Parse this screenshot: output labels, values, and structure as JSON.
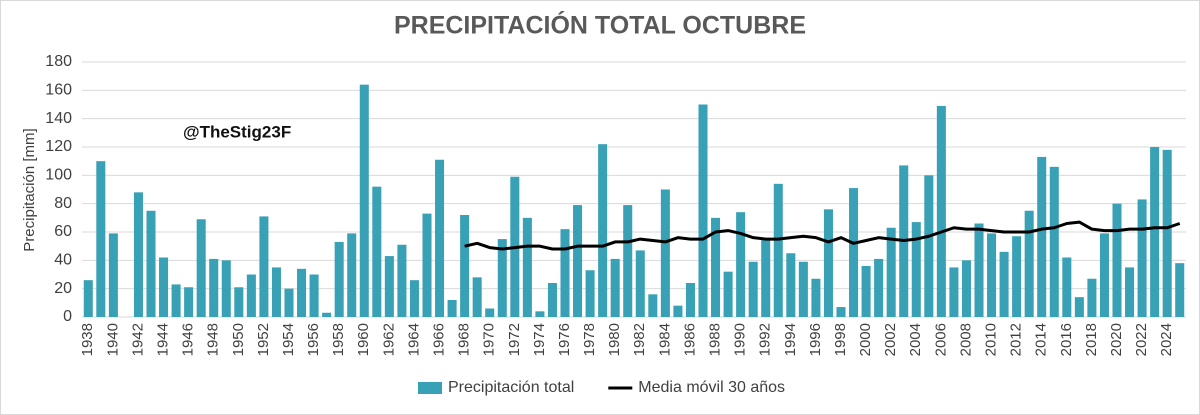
{
  "chart_data": {
    "type": "bar",
    "title": "PRECIPITACIÓN TOTAL OCTUBRE",
    "y_label": "Precipitación [mm]",
    "annotation": "@TheStig23F",
    "categories": [
      "1938",
      null,
      "1940",
      null,
      "1942",
      null,
      "1944",
      null,
      "1946",
      null,
      "1948",
      null,
      "1950",
      null,
      "1952",
      null,
      "1954",
      null,
      "1956",
      null,
      "1958",
      null,
      "1960",
      null,
      "1962",
      null,
      "1964",
      null,
      "1966",
      null,
      "1968",
      null,
      "1970",
      null,
      "1972",
      null,
      "1974",
      null,
      "1976",
      null,
      "1978",
      null,
      "1980",
      null,
      "1982",
      null,
      "1984",
      null,
      "1986",
      null,
      "1988",
      null,
      "1990",
      null,
      "1992",
      null,
      "1994",
      null,
      "1996",
      null,
      "1998",
      null,
      "2000",
      null,
      "2002",
      null,
      "2004",
      null,
      "2006",
      null,
      "2008",
      null,
      "2010",
      null,
      "2012",
      null,
      "2014",
      null,
      "2016",
      null,
      "2018",
      null,
      "2020",
      null,
      "2022",
      null,
      "2024",
      null
    ],
    "series": [
      {
        "name": "Precipitación total",
        "type": "bar",
        "color": "#38a1b5",
        "values": [
          26,
          110,
          59,
          0,
          88,
          75,
          42,
          23,
          21,
          69,
          41,
          40,
          21,
          30,
          71,
          35,
          20,
          34,
          30,
          3,
          53,
          59,
          164,
          92,
          43,
          51,
          26,
          73,
          111,
          12,
          72,
          28,
          6,
          55,
          99,
          70,
          4,
          24,
          62,
          79,
          33,
          122,
          41,
          79,
          47,
          16,
          90,
          8,
          24,
          150,
          70,
          32,
          74,
          39,
          55,
          94,
          45,
          39,
          27,
          76,
          7,
          91,
          36,
          41,
          63,
          107,
          67,
          100,
          149,
          35,
          40,
          66,
          59,
          46,
          57,
          75,
          113,
          106,
          42,
          14,
          27,
          59,
          80,
          35,
          83,
          120,
          118,
          38
        ]
      },
      {
        "name": "Media móvil 30 años",
        "type": "line",
        "color": "#000000",
        "values": [
          null,
          null,
          null,
          null,
          null,
          null,
          null,
          null,
          null,
          null,
          null,
          null,
          null,
          null,
          null,
          null,
          null,
          null,
          null,
          null,
          null,
          null,
          null,
          null,
          null,
          null,
          null,
          null,
          null,
          null,
          50,
          52,
          49,
          48,
          49,
          50,
          50,
          48,
          48,
          50,
          50,
          50,
          53,
          53,
          55,
          54,
          53,
          56,
          55,
          55,
          60,
          61,
          59,
          56,
          55,
          55,
          56,
          57,
          56,
          53,
          56,
          52,
          54,
          56,
          55,
          54,
          55,
          57,
          60,
          63,
          62,
          62,
          61,
          60,
          60,
          60,
          62,
          63,
          66,
          67,
          62,
          61,
          61,
          62,
          62,
          63,
          63,
          66
        ]
      }
    ],
    "ylim": [
      0,
      180
    ],
    "yticks": [
      0,
      20,
      40,
      60,
      80,
      100,
      120,
      140,
      160,
      180
    ],
    "grid": true,
    "legend": "bottom"
  }
}
